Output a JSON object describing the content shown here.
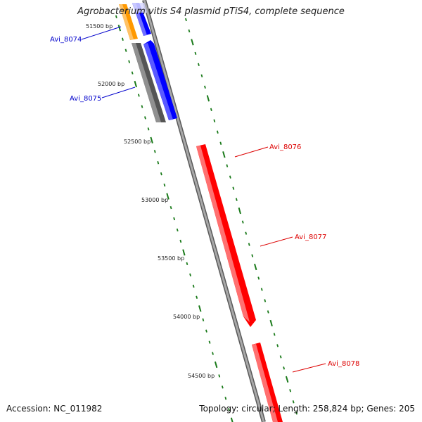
{
  "title": "Agrobacterium vitis S4 plasmid pTiS4, complete sequence",
  "footer": {
    "accession": "Accession: NC_011982",
    "summary": "Topology: circular; Length: 258,824 bp; Genes: 205"
  },
  "colors": {
    "backbone": "#808080",
    "tick": "#1a7a1a",
    "forward_label": "#0000cc",
    "reverse_label": "#dd0000",
    "blue_gene": "#0000ff",
    "red_gene": "#ff0000",
    "orange_gene": "#ff9900",
    "gray_gene": "#666666"
  },
  "ticks": [
    {
      "label": "51500 bp"
    },
    {
      "label": "52000 bp"
    },
    {
      "label": "52500 bp"
    },
    {
      "label": "53000 bp"
    },
    {
      "label": "53500 bp"
    },
    {
      "label": "54000 bp"
    },
    {
      "label": "54500 bp"
    }
  ],
  "genes": [
    {
      "id": "orange-gene",
      "color": "orange_gene",
      "label": ""
    },
    {
      "id": "gray-gene",
      "color": "gray_gene",
      "label": ""
    },
    {
      "id": "avi-8074",
      "color": "blue_gene",
      "label": "Avi_8074"
    },
    {
      "id": "avi-8075",
      "color": "blue_gene",
      "label": "Avi_8075"
    },
    {
      "id": "avi-8076",
      "color": "red_gene",
      "label": "Avi_8076"
    },
    {
      "id": "avi-8077",
      "color": "red_gene",
      "label": "Avi_8077"
    },
    {
      "id": "avi-8078",
      "color": "red_gene",
      "label": "Avi_8078"
    }
  ]
}
